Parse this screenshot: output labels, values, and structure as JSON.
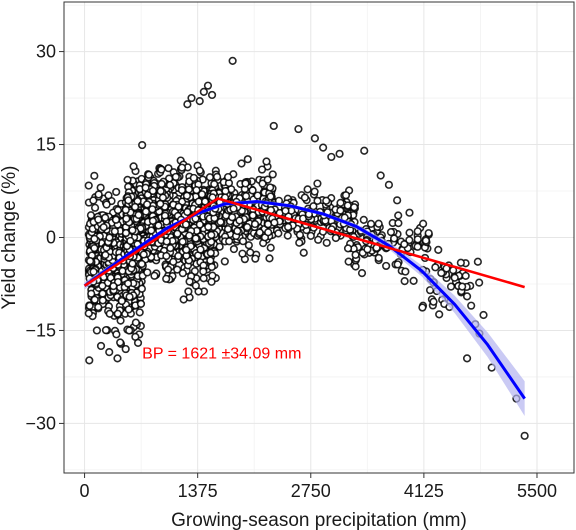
{
  "chart_data": {
    "type": "scatter",
    "xlabel": "Growing-season precipitation (mm)",
    "ylabel": "Yield change (%)",
    "xlim": [
      -250,
      5950
    ],
    "ylim": [
      -38,
      38
    ],
    "x_ticks": [
      0,
      1375,
      2750,
      4125,
      5500
    ],
    "x_tick_labels": [
      "0",
      "1375",
      "2750",
      "4125",
      "5500"
    ],
    "y_ticks": [
      -30,
      -15,
      0,
      15,
      30
    ],
    "y_tick_labels": [
      "−30",
      "−15",
      "0",
      "15",
      "30"
    ],
    "grid": true,
    "annotation": {
      "text": "BP = 1621 ±34.09 mm",
      "x": 700,
      "y": -19.5
    },
    "series": [
      {
        "kind": "points",
        "color": "#000000",
        "clusters": [
          {
            "x_min": 50,
            "x_max": 700,
            "y_center": -4,
            "y_spread": 10,
            "count": 700
          },
          {
            "x_min": 500,
            "x_max": 1600,
            "y_center": 2,
            "y_spread": 9,
            "count": 900
          },
          {
            "x_min": 1500,
            "x_max": 2300,
            "y_center": 4,
            "y_spread": 7,
            "count": 320
          },
          {
            "x_min": 2200,
            "x_max": 3300,
            "y_center": 3,
            "y_spread": 4,
            "count": 220
          },
          {
            "x_min": 3200,
            "x_max": 4200,
            "y_center": -1,
            "y_spread": 4,
            "count": 110
          },
          {
            "x_min": 4100,
            "x_max": 4800,
            "y_center": -7,
            "y_spread": 5,
            "count": 45
          }
        ],
        "points": [
          {
            "x": 1800,
            "y": 28.5
          },
          {
            "x": 1250,
            "y": 21.5
          },
          {
            "x": 1300,
            "y": 22.5
          },
          {
            "x": 1450,
            "y": 23.5
          },
          {
            "x": 1500,
            "y": 24.5
          },
          {
            "x": 1550,
            "y": 23.0
          },
          {
            "x": 1400,
            "y": 22.0
          },
          {
            "x": 2300,
            "y": 18.0
          },
          {
            "x": 2600,
            "y": 17.5
          },
          {
            "x": 2800,
            "y": 16.0
          },
          {
            "x": 2900,
            "y": 14.5
          },
          {
            "x": 3000,
            "y": 13.0
          },
          {
            "x": 3100,
            "y": 13.5
          },
          {
            "x": 3400,
            "y": 14.0
          },
          {
            "x": 3600,
            "y": 10.0
          },
          {
            "x": 3700,
            "y": 8.5
          },
          {
            "x": 3800,
            "y": 6.0
          },
          {
            "x": 3950,
            "y": 4.0
          },
          {
            "x": 4050,
            "y": 1.0
          },
          {
            "x": 4150,
            "y": -0.5
          },
          {
            "x": 4300,
            "y": -2.0
          },
          {
            "x": 4400,
            "y": -5.0
          },
          {
            "x": 4500,
            "y": -6.5
          },
          {
            "x": 4650,
            "y": -9.5
          },
          {
            "x": 4700,
            "y": -11.0
          },
          {
            "x": 4750,
            "y": -14.0
          },
          {
            "x": 4800,
            "y": -15.5
          },
          {
            "x": 4850,
            "y": -12.5
          },
          {
            "x": 4650,
            "y": -19.5
          },
          {
            "x": 4950,
            "y": -21.0
          },
          {
            "x": 5250,
            "y": -26.0
          },
          {
            "x": 5350,
            "y": -32.0
          },
          {
            "x": 3900,
            "y": -5.5
          },
          {
            "x": 4000,
            "y": -7.0
          },
          {
            "x": 4200,
            "y": -8.5
          },
          {
            "x": 200,
            "y": -17.5
          },
          {
            "x": 300,
            "y": -18.5
          },
          {
            "x": 400,
            "y": -19.5
          },
          {
            "x": 500,
            "y": -18.0
          },
          {
            "x": 650,
            "y": -17.0
          },
          {
            "x": 150,
            "y": -15.0
          }
        ]
      },
      {
        "kind": "segmented-fit",
        "color": "#ff0000",
        "x": [
          0,
          1621,
          5350
        ],
        "y": [
          -7.8,
          6.3,
          -8.0
        ]
      },
      {
        "kind": "quadratic-fit",
        "color": "#0000ff",
        "band_color": "#b3b3f0",
        "x": [
          0,
          500,
          1000,
          1375,
          1700,
          2100,
          2500,
          2900,
          3300,
          3700,
          4100,
          4500,
          4900,
          5350
        ],
        "y": [
          -7.8,
          -3.0,
          1.5,
          3.9,
          5.4,
          5.8,
          5.1,
          3.8,
          1.8,
          -1.3,
          -5.4,
          -10.8,
          -17.3,
          -26.0
        ],
        "band_width": [
          0.6,
          0.3,
          0.3,
          0.3,
          0.3,
          0.3,
          0.3,
          0.3,
          0.4,
          0.6,
          0.9,
          1.4,
          2.0,
          2.8
        ]
      }
    ]
  }
}
